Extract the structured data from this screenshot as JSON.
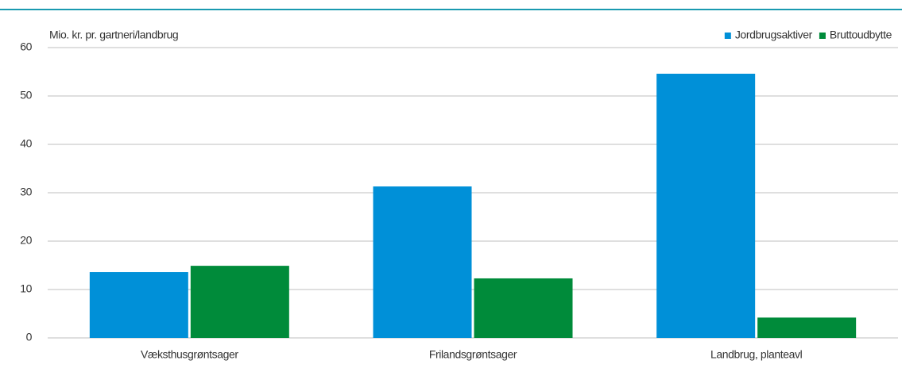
{
  "chart_data": {
    "type": "bar",
    "y_axis_label": "Mio. kr. pr. gartneri/landbrug",
    "categories": [
      "Væksthusgrøntsager",
      "Frilandsgrøntsager",
      "Landbrug, planteavl"
    ],
    "series": [
      {
        "name": "Jordbrugsaktiver",
        "color": "#0090d8",
        "values": [
          13.6,
          31.3,
          54.6
        ]
      },
      {
        "name": "Bruttoudbytte",
        "color": "#008b3a",
        "values": [
          14.9,
          12.3,
          4.2
        ]
      }
    ],
    "ylim": [
      0,
      60
    ],
    "yticks": [
      0,
      10,
      20,
      30,
      40,
      50,
      60
    ],
    "grid": true,
    "legend": "top-right"
  }
}
